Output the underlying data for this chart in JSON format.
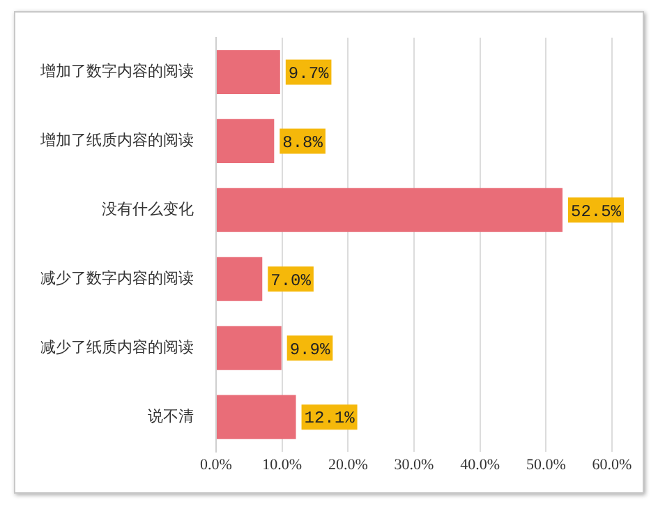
{
  "chart_data": {
    "type": "bar",
    "orientation": "horizontal",
    "categories": [
      "增加了数字内容的阅读",
      "增加了纸质内容的阅读",
      "没有什么变化",
      "减少了数字内容的阅读",
      "减少了纸质内容的阅读",
      "说不清"
    ],
    "values": [
      9.7,
      8.8,
      52.5,
      7.0,
      9.9,
      12.1
    ],
    "value_labels": [
      "9.7%",
      "8.8%",
      "52.5%",
      "7.0%",
      "9.9%",
      "12.1%"
    ],
    "color": "#e96d78",
    "xlim": [
      0,
      60
    ],
    "xticks": [
      {
        "value": 0,
        "label": "0.0%"
      },
      {
        "value": 10,
        "label": "10.0%"
      },
      {
        "value": 20,
        "label": "20.0%"
      },
      {
        "value": 30,
        "label": "30.0%"
      },
      {
        "value": 40,
        "label": "40.0%"
      },
      {
        "value": 50,
        "label": "50.0%"
      },
      {
        "value": 60,
        "label": "60.0%"
      }
    ],
    "grid": "x"
  }
}
